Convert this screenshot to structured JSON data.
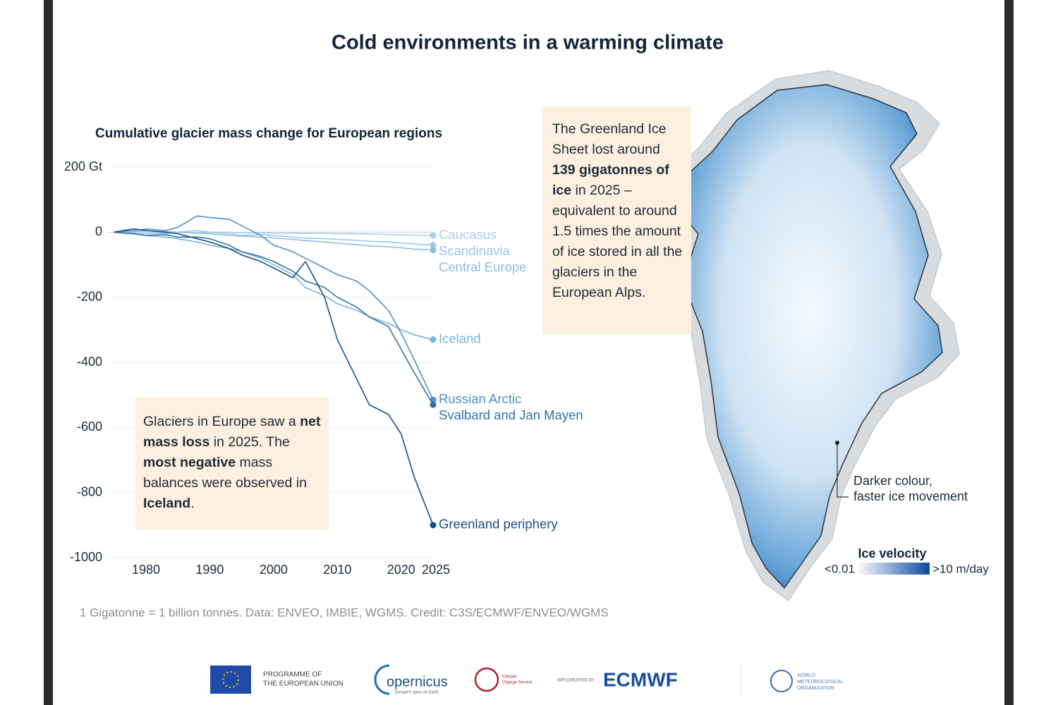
{
  "header": {
    "title": "Cold environments in a warming climate"
  },
  "chart_data": {
    "type": "line",
    "title": "Cumulative glacier mass change for European regions",
    "x": [
      1975,
      1978,
      1980,
      1983,
      1985,
      1988,
      1990,
      1993,
      1995,
      1998,
      2000,
      2003,
      2005,
      2008,
      2010,
      2013,
      2015,
      2018,
      2020,
      2022,
      2025
    ],
    "series": [
      {
        "name": "Caucasus",
        "color": "#a9d0ea",
        "values": [
          0,
          2,
          0,
          -2,
          0,
          -2,
          0,
          0,
          -2,
          -2,
          -3,
          -3,
          -4,
          -4,
          -5,
          -5,
          -6,
          -7,
          -8,
          -9,
          -10
        ]
      },
      {
        "name": "Scandinavia",
        "color": "#9cc6e4",
        "values": [
          0,
          -3,
          -5,
          -5,
          0,
          5,
          0,
          -5,
          -10,
          -8,
          -10,
          -15,
          -18,
          -20,
          -22,
          -25,
          -28,
          -30,
          -33,
          -36,
          -40
        ]
      },
      {
        "name": "Central Europe",
        "color": "#8fbde0",
        "values": [
          0,
          2,
          5,
          2,
          0,
          -3,
          -5,
          -10,
          -12,
          -15,
          -18,
          -22,
          -26,
          -30,
          -34,
          -38,
          -42,
          -45,
          -48,
          -52,
          -55
        ]
      },
      {
        "name": "Iceland",
        "color": "#7db2da",
        "values": [
          0,
          -5,
          -10,
          -15,
          -20,
          -30,
          -40,
          -50,
          -60,
          -80,
          -100,
          -130,
          -170,
          -195,
          -220,
          -240,
          -260,
          -280,
          -300,
          -315,
          -330
        ]
      },
      {
        "name": "Russian Arctic",
        "color": "#4d92c4",
        "values": [
          0,
          5,
          10,
          5,
          15,
          50,
          45,
          40,
          20,
          -10,
          -40,
          -60,
          -80,
          -110,
          -130,
          -150,
          -180,
          -240,
          -310,
          -390,
          -515
        ]
      },
      {
        "name": "Svalbard and Jan Mayen",
        "color": "#2d72ab",
        "values": [
          0,
          -5,
          -10,
          -8,
          -15,
          -15,
          -20,
          -40,
          -60,
          -75,
          -90,
          -120,
          -150,
          -170,
          -200,
          -230,
          -260,
          -290,
          -360,
          -430,
          -530
        ]
      },
      {
        "name": "Greenland periphery",
        "color": "#1a4f86",
        "values": [
          0,
          10,
          5,
          0,
          -5,
          -20,
          -30,
          -50,
          -70,
          -90,
          -110,
          -140,
          -90,
          -200,
          -330,
          -450,
          -530,
          -560,
          -620,
          -750,
          -900
        ]
      }
    ],
    "xlim": [
      1974,
      2025
    ],
    "xticks": [
      1980,
      1990,
      2000,
      2010,
      2020,
      2025
    ],
    "ylim": [
      -1000,
      200
    ],
    "yticks": [
      {
        "value": 200,
        "label": "200 Gt"
      },
      0,
      -200,
      -400,
      -600,
      -800,
      -1000
    ],
    "grid": true
  },
  "annotations": [
    {
      "runs": [
        {
          "text": "Glaciers in Europe saw a ",
          "bold": false
        },
        {
          "text": "net mass loss",
          "bold": true
        },
        {
          "text": " in 2025. The ",
          "bold": false
        },
        {
          "text": "most negative",
          "bold": true
        },
        {
          "text": " mass balances were observed in ",
          "bold": false
        },
        {
          "text": "Iceland",
          "bold": true
        },
        {
          "text": ".",
          "bold": false
        }
      ]
    },
    {
      "runs": [
        {
          "text": "The Greenland Ice Sheet lost around ",
          "bold": false
        },
        {
          "text": "139 gigatonnes of ice",
          "bold": true
        },
        {
          "text": " in 2025 – equivalent to around 1.5 times the amount of ice stored in all the glaciers in the European Alps.",
          "bold": false
        }
      ]
    }
  ],
  "map": {
    "callout": [
      "Darker colour,",
      "faster ice movement"
    ],
    "legend_title": "Ice velocity",
    "legend_min": "<0.01",
    "legend_max": ">10 m/day"
  },
  "footer": {
    "source": "1 Gigatonne = 1 billion tonnes. Data: ENVEO, IMBIE, WGMS. Credit: C3S/ECMWF/ENVEO/WGMS",
    "logos": [
      "PROGRAMME OF",
      "THE EUROPEAN UNION",
      "opernicus",
      "Europe's eyes on Earth",
      "Climate",
      "Change Service",
      "IMPLEMENTED BY",
      "ECMWF",
      "WORLD",
      "METEOROLOGICAL",
      "ORGANIZATION"
    ]
  }
}
